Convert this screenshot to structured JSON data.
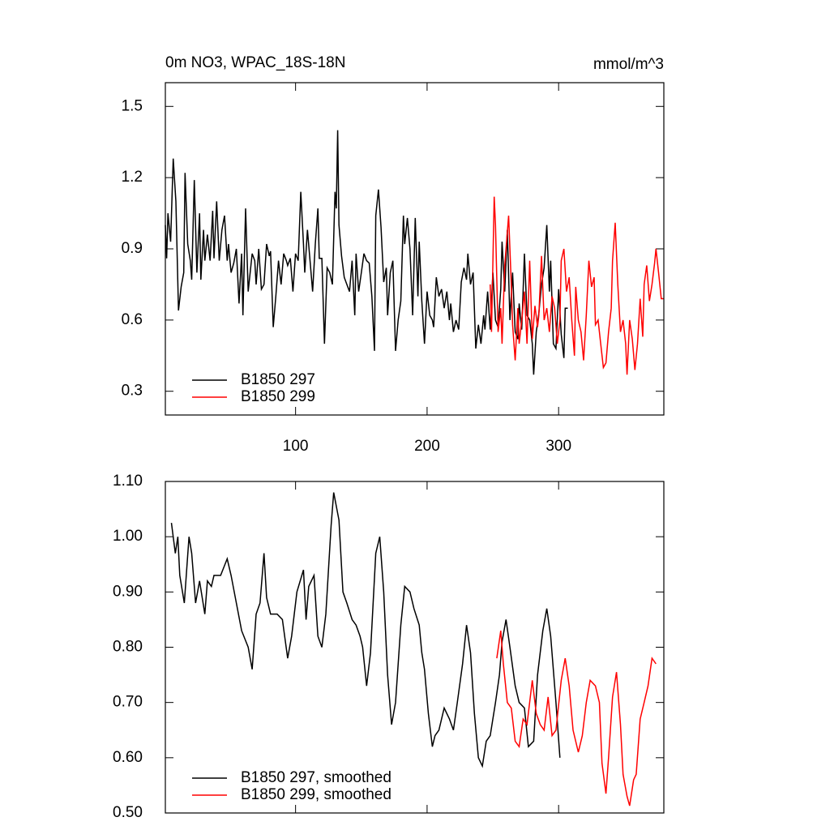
{
  "chart_data": [
    {
      "type": "line",
      "title": "0m NO3, WPAC_18S-18N",
      "units": "mmol/m^3",
      "xlim": [
        1,
        380
      ],
      "xticks": [
        100,
        200,
        300
      ],
      "ylim": [
        0.2,
        1.6
      ],
      "yticks": [
        0.3,
        0.6,
        0.9,
        1.2,
        1.5
      ],
      "legend": "lower left",
      "series": [
        {
          "name": "B1850 297",
          "color": "#000000",
          "x": [
            1,
            2,
            3,
            5,
            7,
            9,
            11,
            13,
            15,
            16,
            18,
            20,
            21,
            23,
            25,
            27,
            28,
            30,
            31,
            33,
            35,
            37,
            38,
            40,
            42,
            44,
            46,
            48,
            49,
            51,
            53,
            55,
            57,
            59,
            60,
            62,
            64,
            67,
            69,
            70,
            72,
            74,
            76,
            78,
            80,
            81,
            83,
            85,
            87,
            89,
            91,
            93,
            94,
            96,
            98,
            100,
            102,
            104,
            106,
            107,
            109,
            111,
            113,
            115,
            117,
            118,
            120,
            122,
            124,
            126,
            128,
            130,
            131,
            132,
            133,
            135,
            137,
            139,
            141,
            143,
            145,
            146,
            148,
            150,
            152,
            154,
            156,
            158,
            160,
            161,
            163,
            165,
            167,
            169,
            170,
            172,
            174,
            176,
            178,
            180,
            182,
            183,
            185,
            187,
            189,
            191,
            193,
            194,
            196,
            198,
            200,
            202,
            204,
            205,
            207,
            209,
            211,
            213,
            215,
            217,
            218,
            220,
            222,
            224,
            226,
            228,
            230,
            231,
            233,
            235,
            237,
            239,
            241,
            243,
            244,
            246,
            248,
            250,
            252,
            254,
            256,
            257,
            259,
            261,
            263,
            265,
            267,
            269,
            270,
            272,
            274,
            276,
            278,
            280,
            281,
            283,
            285,
            287,
            289,
            291,
            293,
            294,
            296,
            298,
            300,
            302,
            304,
            305,
            307
          ],
          "values": [
            1.0,
            0.86,
            1.05,
            0.93,
            1.28,
            1.1,
            0.64,
            0.74,
            0.8,
            1.22,
            0.92,
            0.85,
            0.77,
            1.19,
            0.8,
            1.05,
            0.77,
            0.98,
            0.85,
            0.96,
            0.85,
            1.06,
            0.86,
            1.1,
            0.85,
            0.98,
            1.04,
            0.85,
            0.92,
            0.8,
            0.84,
            0.9,
            0.67,
            0.88,
            0.62,
            1.07,
            0.72,
            0.88,
            0.85,
            0.75,
            0.9,
            0.73,
            0.75,
            0.92,
            0.87,
            0.89,
            0.57,
            0.7,
            0.85,
            0.75,
            0.88,
            0.85,
            0.83,
            0.86,
            0.72,
            0.88,
            0.85,
            1.14,
            0.92,
            0.8,
            0.98,
            0.85,
            0.72,
            0.92,
            1.07,
            0.86,
            0.86,
            0.5,
            0.82,
            0.8,
            0.75,
            1.14,
            1.07,
            1.4,
            1.0,
            0.87,
            0.78,
            0.75,
            0.72,
            0.85,
            0.62,
            0.88,
            0.72,
            0.8,
            0.88,
            0.85,
            0.84,
            0.7,
            0.47,
            1.04,
            1.15,
            0.99,
            0.76,
            0.82,
            0.62,
            0.8,
            0.85,
            0.47,
            0.6,
            0.68,
            1.04,
            0.92,
            1.03,
            0.9,
            0.62,
            1.03,
            0.7,
            0.93,
            0.68,
            0.5,
            0.72,
            0.62,
            0.6,
            0.57,
            0.78,
            0.7,
            0.73,
            0.65,
            0.72,
            0.6,
            0.67,
            0.55,
            0.6,
            0.56,
            0.76,
            0.82,
            0.77,
            0.88,
            0.75,
            0.8,
            0.48,
            0.58,
            0.5,
            0.62,
            0.56,
            0.72,
            0.56,
            0.8,
            0.6,
            0.57,
            0.73,
            0.93,
            0.72,
            0.98,
            0.6,
            0.8,
            0.55,
            0.52,
            0.67,
            0.56,
            0.88,
            0.62,
            0.6,
            0.5,
            0.37,
            0.55,
            0.63,
            0.75,
            0.82,
            1.0,
            0.72,
            0.85,
            0.5,
            0.48,
            0.73,
            0.54,
            0.44,
            0.65,
            0.65
          ]
        },
        {
          "name": "B1850 299",
          "color": "#ff0000",
          "x": [
            248,
            249,
            251,
            252,
            254,
            256,
            257,
            259,
            262,
            264,
            265,
            267,
            269,
            270,
            272,
            274,
            276,
            278,
            280,
            282,
            284,
            285,
            287,
            289,
            291,
            293,
            295,
            297,
            299,
            301,
            302,
            304,
            306,
            308,
            310,
            312,
            313,
            315,
            317,
            319,
            321,
            323,
            325,
            327,
            328,
            330,
            332,
            334,
            336,
            338,
            340,
            341,
            343,
            345,
            347,
            349,
            351,
            352,
            354,
            356,
            358,
            360,
            362,
            364,
            365,
            367,
            369,
            371,
            373,
            374,
            376,
            378,
            380
          ],
          "values": [
            0.75,
            0.55,
            1.12,
            1.0,
            0.55,
            0.65,
            0.5,
            0.83,
            1.04,
            0.75,
            0.58,
            0.43,
            0.65,
            0.5,
            0.6,
            0.72,
            0.5,
            0.85,
            0.52,
            0.66,
            0.57,
            0.62,
            0.87,
            0.6,
            0.65,
            0.55,
            0.7,
            0.65,
            0.5,
            0.6,
            0.85,
            0.9,
            0.72,
            0.78,
            0.6,
            0.45,
            0.74,
            0.6,
            0.55,
            0.43,
            0.62,
            0.85,
            0.74,
            0.78,
            0.58,
            0.6,
            0.5,
            0.4,
            0.42,
            0.55,
            0.65,
            0.85,
            1.01,
            0.75,
            0.55,
            0.6,
            0.5,
            0.37,
            0.6,
            0.52,
            0.39,
            0.5,
            0.69,
            0.53,
            0.75,
            0.83,
            0.68,
            0.75,
            0.84,
            0.9,
            0.8,
            0.69,
            0.69
          ]
        }
      ]
    },
    {
      "type": "line",
      "xlim": [
        1,
        380
      ],
      "xticks": [
        100,
        200,
        300
      ],
      "ylim": [
        0.5,
        1.1
      ],
      "yticks": [
        {
          "value": 0.5,
          "label": "0.50"
        },
        {
          "value": 0.6,
          "label": "0.60"
        },
        {
          "value": 0.7,
          "label": "0.70"
        },
        {
          "value": 0.8,
          "label": "0.80"
        },
        {
          "value": 0.9,
          "label": "0.90"
        },
        {
          "value": 1.0,
          "label": "1.00"
        },
        {
          "value": 1.1,
          "label": "1.10"
        }
      ],
      "legend": "lower left",
      "series": [
        {
          "name": "B1850 297, smoothed",
          "color": "#000000",
          "x": [
            5.6,
            8.6,
            10.5,
            12,
            15.4,
            19,
            21,
            24,
            27,
            31,
            33,
            36,
            38,
            43,
            48,
            51,
            55,
            59,
            64,
            67,
            70,
            73,
            76,
            78,
            81,
            86,
            90,
            94,
            97,
            101,
            106,
            108,
            110,
            114,
            117,
            120,
            123,
            127,
            129,
            133,
            136,
            139,
            143,
            146,
            149,
            151,
            154,
            157,
            161,
            164,
            167,
            170,
            173,
            176,
            180,
            183,
            187,
            190,
            194,
            196,
            198,
            201,
            204,
            206,
            209,
            213,
            217,
            220,
            223,
            227,
            230,
            233,
            236,
            239,
            242,
            245,
            248,
            252,
            255,
            257,
            260,
            263,
            267,
            270,
            274,
            277,
            281,
            284,
            288,
            291,
            294,
            298,
            301
          ],
          "values": [
            1.025,
            0.97,
            1.0,
            0.93,
            0.88,
            1.0,
            0.97,
            0.88,
            0.92,
            0.86,
            0.92,
            0.91,
            0.93,
            0.93,
            0.96,
            0.93,
            0.88,
            0.83,
            0.8,
            0.76,
            0.86,
            0.88,
            0.97,
            0.89,
            0.86,
            0.86,
            0.85,
            0.78,
            0.82,
            0.9,
            0.94,
            0.85,
            0.91,
            0.93,
            0.82,
            0.8,
            0.86,
            1.02,
            1.08,
            1.03,
            0.9,
            0.88,
            0.85,
            0.84,
            0.82,
            0.8,
            0.73,
            0.79,
            0.97,
            1.0,
            0.9,
            0.75,
            0.66,
            0.7,
            0.84,
            0.91,
            0.9,
            0.87,
            0.84,
            0.79,
            0.76,
            0.68,
            0.62,
            0.64,
            0.65,
            0.69,
            0.67,
            0.65,
            0.7,
            0.77,
            0.84,
            0.79,
            0.68,
            0.6,
            0.585,
            0.63,
            0.64,
            0.7,
            0.75,
            0.81,
            0.85,
            0.8,
            0.73,
            0.7,
            0.69,
            0.62,
            0.63,
            0.75,
            0.83,
            0.87,
            0.82,
            0.7,
            0.6
          ]
        },
        {
          "name": "B1850 299, smoothed",
          "color": "#ff0000",
          "x": [
            253,
            256,
            258,
            261,
            264,
            267,
            270,
            273,
            276,
            280,
            283,
            286,
            289,
            292,
            295,
            298,
            302,
            305,
            308,
            311,
            315,
            318,
            321,
            324,
            328,
            331,
            333,
            336,
            338,
            341,
            344,
            347,
            349,
            352,
            354,
            357,
            359,
            362,
            365,
            368,
            371,
            374
          ],
          "values": [
            0.78,
            0.83,
            0.77,
            0.7,
            0.69,
            0.63,
            0.62,
            0.67,
            0.66,
            0.74,
            0.68,
            0.66,
            0.65,
            0.71,
            0.64,
            0.65,
            0.74,
            0.78,
            0.73,
            0.65,
            0.61,
            0.64,
            0.7,
            0.74,
            0.73,
            0.7,
            0.59,
            0.535,
            0.6,
            0.71,
            0.755,
            0.66,
            0.57,
            0.53,
            0.513,
            0.56,
            0.57,
            0.67,
            0.7,
            0.73,
            0.78,
            0.77
          ]
        }
      ]
    }
  ]
}
